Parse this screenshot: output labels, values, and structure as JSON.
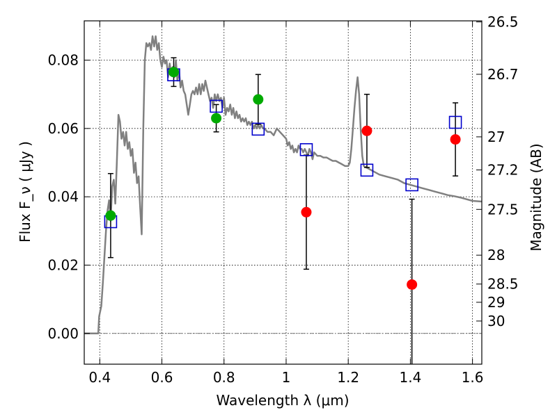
{
  "chart_data": {
    "type": "scatter",
    "xlabel": "Wavelength  λ (μm)",
    "ylabel": "Flux  F_ν  ( μJy )",
    "ylabel_right": "Magnitude (AB)",
    "xlim": [
      0.35,
      1.63
    ],
    "ylim": [
      -0.009,
      0.0915
    ],
    "x_ticks": [
      0.4,
      0.6,
      0.8,
      1.0,
      1.2,
      1.4,
      1.6
    ],
    "x_tick_labels": [
      "0.4",
      "0.6",
      "0.8",
      "1",
      "1.2",
      "1.4",
      "1.6"
    ],
    "y_ticks": [
      0.0,
      0.02,
      0.04,
      0.06,
      0.08
    ],
    "y_tick_labels": [
      "0.00",
      "0.02",
      "0.04",
      "0.06",
      "0.08"
    ],
    "right_ticks": [
      {
        "label": "26.5",
        "mag": 26.5
      },
      {
        "label": "26.7",
        "mag": 26.7
      },
      {
        "label": "27",
        "mag": 27.0
      },
      {
        "label": "27.2",
        "mag": 27.2
      },
      {
        "label": "27.5",
        "mag": 27.5
      },
      {
        "label": "28",
        "mag": 28.0
      },
      {
        "label": "28.5",
        "mag": 28.5
      },
      {
        "label": "29",
        "mag": 29.0
      },
      {
        "label": "30",
        "mag": 30.0
      }
    ],
    "grid": true,
    "series": [
      {
        "kind": "line",
        "color": "#808080",
        "points": [
          [
            0.35,
            0.0
          ],
          [
            0.395,
            0.0
          ],
          [
            0.398,
            0.005
          ],
          [
            0.405,
            0.008
          ],
          [
            0.41,
            0.015
          ],
          [
            0.42,
            0.03
          ],
          [
            0.425,
            0.036
          ],
          [
            0.43,
            0.039
          ],
          [
            0.435,
            0.033
          ],
          [
            0.44,
            0.043
          ],
          [
            0.445,
            0.045
          ],
          [
            0.45,
            0.038
          ],
          [
            0.455,
            0.05
          ],
          [
            0.46,
            0.064
          ],
          [
            0.465,
            0.062
          ],
          [
            0.47,
            0.057
          ],
          [
            0.475,
            0.059
          ],
          [
            0.48,
            0.055
          ],
          [
            0.485,
            0.059
          ],
          [
            0.49,
            0.054
          ],
          [
            0.495,
            0.056
          ],
          [
            0.5,
            0.052
          ],
          [
            0.505,
            0.054
          ],
          [
            0.51,
            0.047
          ],
          [
            0.515,
            0.05
          ],
          [
            0.52,
            0.044
          ],
          [
            0.525,
            0.046
          ],
          [
            0.53,
            0.037
          ],
          [
            0.535,
            0.029
          ],
          [
            0.54,
            0.06
          ],
          [
            0.545,
            0.08
          ],
          [
            0.55,
            0.085
          ],
          [
            0.555,
            0.084
          ],
          [
            0.56,
            0.085
          ],
          [
            0.565,
            0.083
          ],
          [
            0.57,
            0.087
          ],
          [
            0.575,
            0.084
          ],
          [
            0.58,
            0.087
          ],
          [
            0.585,
            0.083
          ],
          [
            0.59,
            0.085
          ],
          [
            0.595,
            0.08
          ],
          [
            0.6,
            0.078
          ],
          [
            0.605,
            0.081
          ],
          [
            0.61,
            0.079
          ],
          [
            0.615,
            0.08
          ],
          [
            0.62,
            0.075
          ],
          [
            0.625,
            0.079
          ],
          [
            0.63,
            0.076
          ],
          [
            0.635,
            0.078
          ],
          [
            0.64,
            0.075
          ],
          [
            0.645,
            0.08
          ],
          [
            0.65,
            0.074
          ],
          [
            0.655,
            0.077
          ],
          [
            0.66,
            0.072
          ],
          [
            0.665,
            0.074
          ],
          [
            0.67,
            0.071
          ],
          [
            0.675,
            0.07
          ],
          [
            0.68,
            0.067
          ],
          [
            0.685,
            0.064
          ],
          [
            0.69,
            0.067
          ],
          [
            0.695,
            0.07
          ],
          [
            0.7,
            0.071
          ],
          [
            0.705,
            0.07
          ],
          [
            0.71,
            0.072
          ],
          [
            0.715,
            0.07
          ],
          [
            0.72,
            0.073
          ],
          [
            0.725,
            0.07
          ],
          [
            0.73,
            0.073
          ],
          [
            0.735,
            0.071
          ],
          [
            0.74,
            0.074
          ],
          [
            0.745,
            0.072
          ],
          [
            0.75,
            0.07
          ],
          [
            0.755,
            0.068
          ],
          [
            0.76,
            0.069
          ],
          [
            0.765,
            0.066
          ],
          [
            0.77,
            0.07
          ],
          [
            0.775,
            0.068
          ],
          [
            0.78,
            0.07
          ],
          [
            0.785,
            0.068
          ],
          [
            0.79,
            0.069
          ],
          [
            0.795,
            0.066
          ],
          [
            0.8,
            0.069
          ],
          [
            0.805,
            0.064
          ],
          [
            0.81,
            0.066
          ],
          [
            0.815,
            0.065
          ],
          [
            0.82,
            0.067
          ],
          [
            0.825,
            0.064
          ],
          [
            0.83,
            0.066
          ],
          [
            0.835,
            0.063
          ],
          [
            0.84,
            0.065
          ],
          [
            0.845,
            0.063
          ],
          [
            0.85,
            0.064
          ],
          [
            0.855,
            0.062
          ],
          [
            0.86,
            0.063
          ],
          [
            0.865,
            0.062
          ],
          [
            0.87,
            0.063
          ],
          [
            0.875,
            0.061
          ],
          [
            0.88,
            0.062
          ],
          [
            0.885,
            0.061
          ],
          [
            0.89,
            0.062
          ],
          [
            0.895,
            0.06
          ],
          [
            0.9,
            0.061
          ],
          [
            0.905,
            0.06
          ],
          [
            0.91,
            0.061
          ],
          [
            0.915,
            0.06
          ],
          [
            0.92,
            0.061
          ],
          [
            0.925,
            0.06
          ],
          [
            0.93,
            0.06
          ],
          [
            0.94,
            0.059
          ],
          [
            0.95,
            0.059
          ],
          [
            0.96,
            0.058
          ],
          [
            0.97,
            0.06
          ],
          [
            0.98,
            0.059
          ],
          [
            0.99,
            0.058
          ],
          [
            1.0,
            0.057
          ],
          [
            1.005,
            0.055
          ],
          [
            1.01,
            0.056
          ],
          [
            1.015,
            0.054
          ],
          [
            1.02,
            0.055
          ],
          [
            1.025,
            0.053
          ],
          [
            1.03,
            0.054
          ],
          [
            1.035,
            0.053
          ],
          [
            1.04,
            0.055
          ],
          [
            1.045,
            0.054
          ],
          [
            1.05,
            0.054
          ],
          [
            1.055,
            0.053
          ],
          [
            1.06,
            0.054
          ],
          [
            1.065,
            0.053
          ],
          [
            1.07,
            0.052
          ],
          [
            1.075,
            0.054
          ],
          [
            1.08,
            0.053
          ],
          [
            1.085,
            0.051
          ],
          [
            1.09,
            0.053
          ],
          [
            1.1,
            0.052
          ],
          [
            1.11,
            0.052
          ],
          [
            1.12,
            0.0515
          ],
          [
            1.13,
            0.0515
          ],
          [
            1.14,
            0.051
          ],
          [
            1.15,
            0.0505
          ],
          [
            1.16,
            0.0505
          ],
          [
            1.17,
            0.05
          ],
          [
            1.18,
            0.0495
          ],
          [
            1.19,
            0.049
          ],
          [
            1.2,
            0.049
          ],
          [
            1.205,
            0.05
          ],
          [
            1.21,
            0.054
          ],
          [
            1.215,
            0.06
          ],
          [
            1.22,
            0.066
          ],
          [
            1.225,
            0.071
          ],
          [
            1.23,
            0.075
          ],
          [
            1.235,
            0.07
          ],
          [
            1.24,
            0.06
          ],
          [
            1.245,
            0.052
          ],
          [
            1.25,
            0.049
          ],
          [
            1.26,
            0.0485
          ],
          [
            1.27,
            0.048
          ],
          [
            1.28,
            0.0475
          ],
          [
            1.29,
            0.047
          ],
          [
            1.3,
            0.0465
          ],
          [
            1.32,
            0.046
          ],
          [
            1.34,
            0.0455
          ],
          [
            1.36,
            0.045
          ],
          [
            1.38,
            0.044
          ],
          [
            1.4,
            0.0435
          ],
          [
            1.42,
            0.043
          ],
          [
            1.44,
            0.0425
          ],
          [
            1.46,
            0.042
          ],
          [
            1.48,
            0.0415
          ],
          [
            1.5,
            0.041
          ],
          [
            1.52,
            0.0405
          ],
          [
            1.54,
            0.0402
          ],
          [
            1.56,
            0.0398
          ],
          [
            1.58,
            0.0393
          ],
          [
            1.6,
            0.0388
          ],
          [
            1.63,
            0.0386
          ]
        ]
      },
      {
        "kind": "squares",
        "color": "#0000cc",
        "x": [
          0.435,
          0.638,
          0.775,
          0.91,
          1.065,
          1.26,
          1.405,
          1.545
        ],
        "y": [
          0.0327,
          0.0757,
          0.0665,
          0.0598,
          0.0538,
          0.0478,
          0.0435,
          0.0618
        ]
      },
      {
        "kind": "circles",
        "color": "#00aa00",
        "x": [
          0.435,
          0.638,
          0.775,
          0.91
        ],
        "y": [
          0.0345,
          0.0765,
          0.063,
          0.0685
        ],
        "err": [
          0.0123,
          0.0042,
          0.004,
          0.0073
        ]
      },
      {
        "kind": "circles",
        "color": "#ff0000",
        "x": [
          1.065,
          1.26,
          1.405,
          1.545
        ],
        "y": [
          0.0355,
          0.0593,
          0.0143,
          0.0568
        ],
        "err": [
          0.0167,
          0.0107,
          0.025,
          0.0107
        ]
      }
    ]
  }
}
